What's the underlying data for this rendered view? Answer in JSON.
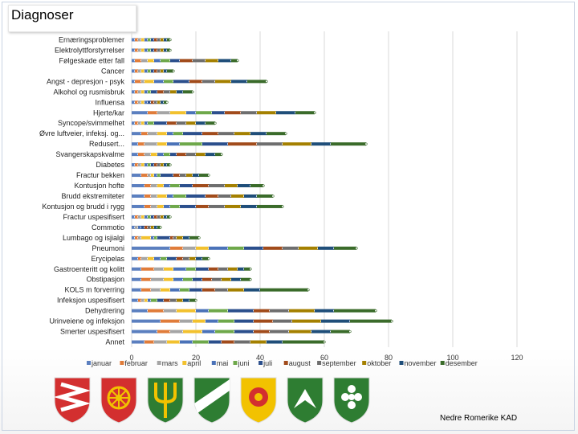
{
  "slide": {
    "title": "Diagnoser",
    "footer": "Nedre Romerike KAD"
  },
  "logos": [
    {
      "name": "coat-of-arms-1",
      "colors": [
        "#d32f2f",
        "#ffffff"
      ]
    },
    {
      "name": "coat-of-arms-2",
      "colors": [
        "#d32f2f",
        "#f2c200"
      ]
    },
    {
      "name": "coat-of-arms-3",
      "colors": [
        "#2e7d32",
        "#f2c200"
      ]
    },
    {
      "name": "coat-of-arms-4",
      "colors": [
        "#2e7d32",
        "#ffffff"
      ]
    },
    {
      "name": "coat-of-arms-5",
      "colors": [
        "#f2c200",
        "#d32f2f"
      ]
    },
    {
      "name": "coat-of-arms-6",
      "colors": [
        "#2e7d32",
        "#ffffff"
      ]
    },
    {
      "name": "coat-of-arms-7",
      "colors": [
        "#2e7d32",
        "#ffffff"
      ]
    }
  ],
  "chart_data": {
    "type": "bar",
    "orientation": "horizontal",
    "stacked": true,
    "title": "",
    "xlabel": "",
    "ylabel": "",
    "xlim": [
      0,
      120
    ],
    "xticks": [
      0,
      20,
      40,
      60,
      80,
      100,
      120
    ],
    "grid": true,
    "legend_position": "bottom",
    "categories": [
      "Ernæringsproblemer",
      "Elektrolyttforstyrrelser",
      "Følgeskade etter fall",
      "Cancer",
      "Angst - depresjon - psyk",
      "Alkohol og rusmisbruk",
      "Influensa",
      "Hjerte/kar",
      "Syncope/svimmelhet",
      "Øvre luftveier, infeksj. og...",
      "Redusert...",
      "Svangerskapskvalme",
      "Diabetes",
      "Fractur bekken",
      "Kontusjon hofte",
      "Brudd ekstremiteter",
      "Kontusjon og brudd i rygg",
      "Fractur uspesifisert",
      "Commotio",
      "Lumbago og isjialgi",
      "Pneumoni",
      "Erycipelas",
      "Gastroenteritt og kolitt",
      "Obstipasjon",
      "KOLS m forverring",
      "Infeksjon uspesifisert",
      "Dehydrering",
      "Urinveiene og infeksjon",
      "Smerter uspesifisert",
      "Annet"
    ],
    "series": [
      {
        "name": "januar",
        "color": "#5b7fbf",
        "values": [
          1,
          1,
          1,
          1,
          1,
          1,
          1,
          5,
          1,
          3,
          2,
          2,
          1,
          3,
          4,
          4,
          4,
          1,
          1,
          1,
          12,
          2,
          3,
          3,
          3,
          2,
          5,
          9,
          8,
          4
        ]
      },
      {
        "name": "februar",
        "color": "#e07c3a",
        "values": [
          1,
          1,
          2,
          1,
          2,
          1,
          1,
          3,
          1,
          2,
          2,
          2,
          1,
          2,
          2,
          2,
          2,
          1,
          0,
          1,
          4,
          1,
          4,
          3,
          3,
          1,
          5,
          6,
          4,
          3
        ]
      },
      {
        "name": "mars",
        "color": "#a5a5a5",
        "values": [
          1,
          1,
          2,
          1,
          1,
          1,
          1,
          4,
          1,
          3,
          4,
          2,
          1,
          1,
          2,
          2,
          2,
          1,
          1,
          1,
          4,
          2,
          3,
          4,
          3,
          1,
          4,
          4,
          4,
          4
        ]
      },
      {
        "name": "april",
        "color": "#f2c12e",
        "values": [
          1,
          1,
          2,
          1,
          3,
          1,
          1,
          5,
          1,
          3,
          3,
          2,
          1,
          1,
          2,
          3,
          2,
          1,
          0,
          3,
          4,
          2,
          3,
          3,
          3,
          1,
          6,
          4,
          6,
          4
        ]
      },
      {
        "name": "mai",
        "color": "#4a72b8",
        "values": [
          1,
          1,
          2,
          1,
          3,
          1,
          1,
          3,
          1,
          2,
          4,
          2,
          1,
          1,
          2,
          2,
          2,
          1,
          1,
          1,
          6,
          2,
          4,
          3,
          3,
          1,
          4,
          4,
          4,
          4
        ]
      },
      {
        "name": "juni",
        "color": "#6ea84a",
        "values": [
          1,
          1,
          3,
          1,
          3,
          1,
          0,
          5,
          2,
          3,
          7,
          2,
          1,
          1,
          3,
          4,
          3,
          1,
          0,
          1,
          5,
          2,
          3,
          3,
          3,
          2,
          6,
          5,
          6,
          5
        ]
      },
      {
        "name": "juli",
        "color": "#2b4f8c",
        "values": [
          1,
          1,
          3,
          1,
          5,
          2,
          1,
          4,
          4,
          6,
          8,
          2,
          1,
          4,
          4,
          6,
          5,
          1,
          1,
          4,
          6,
          3,
          4,
          3,
          4,
          2,
          8,
          6,
          6,
          4
        ]
      },
      {
        "name": "august",
        "color": "#a14b1b",
        "values": [
          1,
          1,
          4,
          1,
          4,
          2,
          1,
          5,
          3,
          5,
          9,
          3,
          1,
          2,
          5,
          4,
          4,
          1,
          1,
          1,
          6,
          2,
          3,
          3,
          4,
          2,
          5,
          6,
          5,
          4
        ]
      },
      {
        "name": "september",
        "color": "#6e6e6e",
        "values": [
          1,
          1,
          4,
          1,
          4,
          2,
          1,
          5,
          3,
          5,
          8,
          3,
          1,
          2,
          5,
          4,
          5,
          1,
          1,
          1,
          5,
          2,
          3,
          3,
          4,
          2,
          6,
          6,
          6,
          5
        ]
      },
      {
        "name": "oktober",
        "color": "#a48000",
        "values": [
          1,
          1,
          4,
          1,
          5,
          2,
          1,
          6,
          3,
          5,
          9,
          3,
          1,
          2,
          4,
          4,
          5,
          1,
          1,
          2,
          6,
          2,
          3,
          3,
          5,
          2,
          8,
          9,
          7,
          5
        ]
      },
      {
        "name": "november",
        "color": "#1f4e79",
        "values": [
          1,
          1,
          4,
          1,
          5,
          2,
          1,
          6,
          3,
          5,
          6,
          3,
          1,
          2,
          4,
          4,
          5,
          1,
          1,
          2,
          5,
          2,
          2,
          3,
          5,
          2,
          6,
          9,
          6,
          5
        ]
      },
      {
        "name": "desember",
        "color": "#3a6b2a",
        "values": [
          1,
          1,
          2,
          2,
          6,
          3,
          1,
          6,
          3,
          6,
          11,
          2,
          1,
          3,
          4,
          5,
          8,
          1,
          1,
          3,
          7,
          2,
          2,
          3,
          15,
          2,
          13,
          13,
          6,
          13
        ]
      }
    ]
  }
}
